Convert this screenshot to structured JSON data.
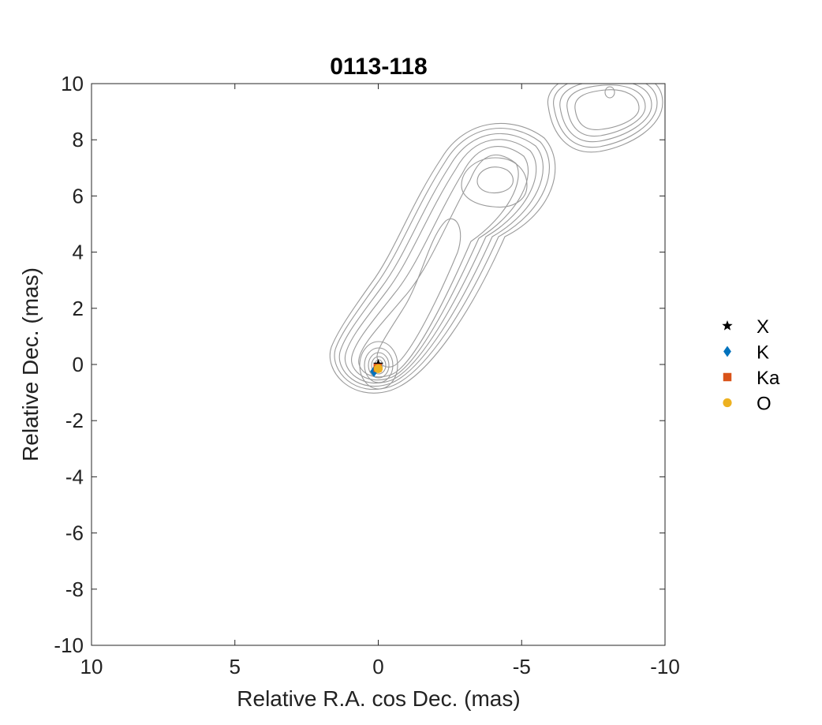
{
  "chart_data": {
    "type": "scatter",
    "title": "0113-118",
    "xlabel": "Relative R.A. cos Dec. (mas)",
    "ylabel": "Relative Dec. (mas)",
    "xlim": [
      10,
      -10
    ],
    "ylim": [
      -10,
      10
    ],
    "x_reversed": true,
    "xticks": [
      10,
      5,
      0,
      -5,
      -10
    ],
    "xtick_labels": [
      "10",
      "5",
      "0",
      "-5",
      "-10"
    ],
    "yticks": [
      -10,
      -8,
      -6,
      -4,
      -2,
      0,
      2,
      4,
      6,
      8,
      10
    ],
    "ytick_labels": [
      "-10",
      "-8",
      "-6",
      "-4",
      "-2",
      "0",
      "2",
      "4",
      "6",
      "8",
      "10"
    ],
    "grid": false,
    "legend_position": "outside-right",
    "series": [
      {
        "name": "X",
        "marker": "star",
        "color": "#000000",
        "points": [
          [
            0.0,
            0.0
          ]
        ]
      },
      {
        "name": "K",
        "marker": "diamond",
        "color": "#0072BD",
        "points": [
          [
            0.15,
            -0.25
          ]
        ]
      },
      {
        "name": "Ka",
        "marker": "square",
        "color": "#D95319",
        "points": [
          [
            0.02,
            -0.12
          ]
        ]
      },
      {
        "name": "O",
        "marker": "circle",
        "color": "#EDB120",
        "points": [
          [
            0.0,
            -0.15
          ]
        ]
      }
    ],
    "contour_color": "#9a9a9a"
  }
}
